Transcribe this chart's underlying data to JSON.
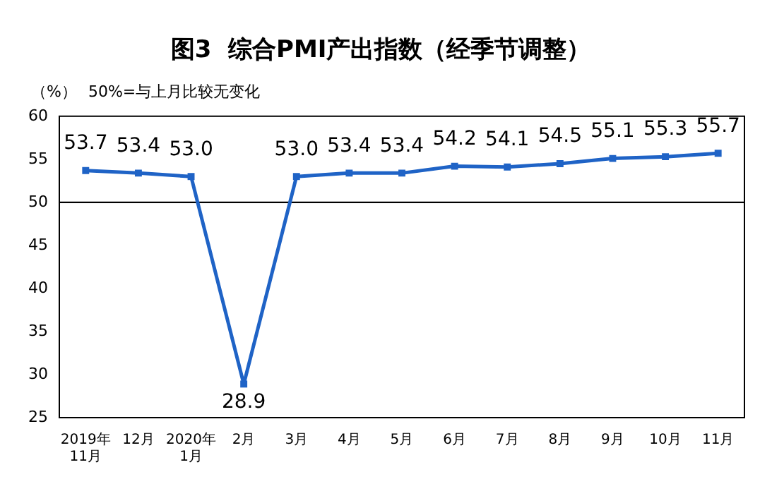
{
  "chart_data": {
    "type": "line",
    "title": "图3  综合PMI产出指数（经季节调整）",
    "ylabel": "（%）",
    "annotations": [
      "50%=与上月比较无变化"
    ],
    "categories": [
      "2019年\n11月",
      "12月",
      "2020年\n1月",
      "2月",
      "3月",
      "4月",
      "5月",
      "6月",
      "7月",
      "8月",
      "9月",
      "10月",
      "11月"
    ],
    "series": [
      {
        "color": "#1f63c6",
        "values": [
          53.7,
          53.4,
          53.0,
          28.9,
          53.0,
          53.4,
          53.4,
          54.2,
          54.1,
          54.5,
          55.1,
          55.3,
          55.7
        ],
        "value_labels": [
          "53.7",
          "53.4",
          "53.0",
          "28.9",
          "53.0",
          "53.4",
          "53.4",
          "54.2",
          "54.1",
          "54.5",
          "55.1",
          "55.3",
          "55.7"
        ]
      }
    ],
    "ylim": [
      25,
      60
    ],
    "yticks": [
      25,
      30,
      35,
      40,
      45,
      50,
      55,
      60
    ],
    "ref_lines": [
      {
        "axis": "y",
        "value": 50,
        "color": "#000000"
      }
    ],
    "grid": false,
    "legend": false,
    "marker": "square",
    "line_style": "solid"
  }
}
